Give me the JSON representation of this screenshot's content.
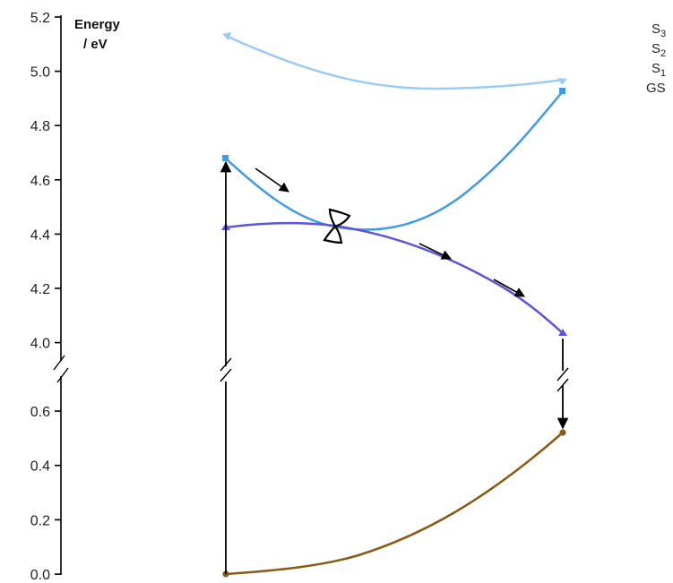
{
  "figure": {
    "axis_title_line1": "Energy",
    "axis_title_line2": "/ eV",
    "upper_ticks": [
      "5.2",
      "5.0",
      "4.8",
      "4.6",
      "4.4",
      "4.2",
      "4.0"
    ],
    "lower_ticks": [
      "0.6",
      "0.4",
      "0.2",
      "0.0"
    ],
    "legend": [
      {
        "label": "S",
        "sub": "3",
        "color": "#9ccbf3"
      },
      {
        "label": "S",
        "sub": "2",
        "color": "#3f9be8"
      },
      {
        "label": "S",
        "sub": "1",
        "color": "#5a55dc"
      },
      {
        "label": "GS",
        "sub": "",
        "color": "#8a5a12"
      }
    ]
  },
  "chart_data": {
    "type": "line",
    "ylabel": "Energy / eV",
    "y_axis_broken": true,
    "ylim_upper": [
      4.0,
      5.2
    ],
    "ylim_lower": [
      0.0,
      0.6
    ],
    "x_labels": [],
    "series": [
      {
        "name": "S3",
        "color": "#9ccbf3",
        "points": [
          [
            0,
            5.13
          ],
          [
            0.5,
            4.94
          ],
          [
            1,
            4.97
          ]
        ]
      },
      {
        "name": "S2",
        "color": "#3f9be8",
        "points": [
          [
            0,
            4.68
          ],
          [
            0.33,
            4.42
          ],
          [
            0.55,
            4.46
          ],
          [
            1,
            4.93
          ]
        ]
      },
      {
        "name": "S1",
        "color": "#5a55dc",
        "points": [
          [
            0,
            4.43
          ],
          [
            0.2,
            4.44
          ],
          [
            0.33,
            4.43
          ],
          [
            0.67,
            4.24
          ],
          [
            1,
            4.04
          ]
        ]
      },
      {
        "name": "GS",
        "color": "#8a5a12",
        "points": [
          [
            0,
            0.0
          ],
          [
            0.33,
            0.04
          ],
          [
            0.67,
            0.22
          ],
          [
            1,
            0.52
          ]
        ]
      }
    ],
    "annotations": [
      "conical intersection S2/S1",
      "vertical excitation GS to S2",
      "decay S1 to GS"
    ]
  }
}
